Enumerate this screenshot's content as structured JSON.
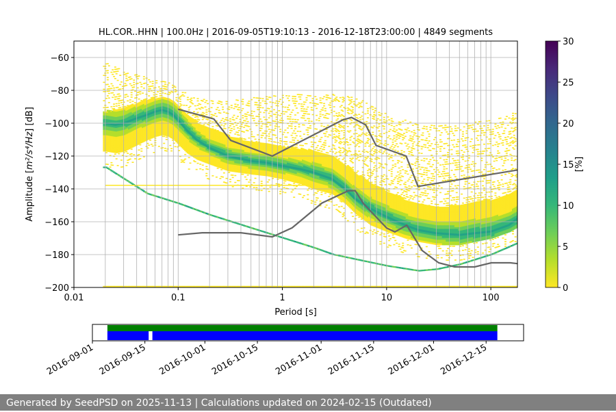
{
  "chart_data": {
    "type": "heatmap",
    "title": "HL.COR..HHN | 100.0Hz | 2016-09-05T19:10:13 - 2016-12-18T23:00:00 | 4849 segments",
    "xlabel": "Period [s]",
    "xscale": "log",
    "xlim": [
      0.01,
      180
    ],
    "xticks": [
      0.01,
      0.1,
      1,
      10,
      100
    ],
    "xtick_labels": [
      "0.01",
      "0.1",
      "1",
      "10",
      "100"
    ],
    "ylabel_prefix": "Amplitude [",
    "ylabel_math": "m²/s⁴/Hz",
    "ylabel_suffix": "] [dB]",
    "ylim": [
      -200,
      -50
    ],
    "yticks": [
      -200,
      -180,
      -160,
      -140,
      -120,
      -100,
      -80,
      -60
    ],
    "ytick_labels": [
      "−200",
      "−180",
      "−160",
      "−140",
      "−120",
      "−100",
      "−80",
      "−60"
    ],
    "grid": true,
    "colorbar": {
      "label": "[%]",
      "min": 0,
      "max": 30,
      "ticks": [
        0,
        5,
        10,
        15,
        20,
        25,
        30
      ],
      "tick_labels": [
        "0",
        "5",
        "10",
        "15",
        "20",
        "25",
        "30"
      ],
      "colors": [
        "#fde725",
        "#b5de2b",
        "#6ece58",
        "#35b779",
        "#1f9e89",
        "#26828e",
        "#31688e",
        "#3e4989",
        "#482878",
        "#440154"
      ]
    },
    "mode_curve": {
      "period": [
        0.02,
        0.025,
        0.03,
        0.04,
        0.05,
        0.06,
        0.07,
        0.08,
        0.09,
        0.1,
        0.12,
        0.15,
        0.2,
        0.3,
        0.5,
        0.7,
        1,
        1.5,
        2,
        3,
        4,
        5,
        7,
        10,
        15,
        20,
        30,
        50,
        70,
        100,
        150,
        180
      ],
      "db": [
        -100,
        -101,
        -100,
        -97,
        -95,
        -93,
        -92,
        -93,
        -95,
        -98,
        -104,
        -110,
        -115,
        -120,
        -123,
        -124,
        -126,
        -128,
        -130,
        -134,
        -140,
        -146,
        -152,
        -157,
        -162,
        -165,
        -167,
        -168,
        -167,
        -166,
        -162,
        -158
      ]
    },
    "mode_noise_band": {
      "period": [
        0.02,
        0.025,
        0.03,
        0.04,
        0.05,
        0.06,
        0.07,
        0.08,
        0.09,
        0.1,
        0.12,
        0.15,
        0.2,
        0.3,
        0.5,
        0.7,
        1,
        1.5,
        2,
        3,
        4,
        5,
        7,
        10,
        15,
        20,
        30,
        50,
        70,
        100,
        150,
        180
      ],
      "db_upper": [
        -93,
        -92,
        -91,
        -88,
        -86,
        -85,
        -84,
        -85,
        -87,
        -90,
        -95,
        -100,
        -104,
        -108,
        -112,
        -113,
        -115,
        -116,
        -117,
        -120,
        -126,
        -131,
        -137,
        -142,
        -147,
        -150,
        -152,
        -150,
        -148,
        -147,
        -144,
        -140
      ],
      "db_lower": [
        -117,
        -118,
        -117,
        -113,
        -110,
        -108,
        -107,
        -108,
        -110,
        -113,
        -118,
        -122,
        -125,
        -129,
        -131,
        -132,
        -134,
        -137,
        -140,
        -143,
        -149,
        -155,
        -162,
        -166,
        -170,
        -172,
        -174,
        -174,
        -172,
        -170,
        -166,
        -163
      ]
    },
    "scatter_band_upper": {
      "period": [
        0.02,
        0.03,
        0.05,
        0.08,
        0.1,
        0.15,
        0.2,
        0.3,
        0.5,
        1,
        2,
        3,
        5,
        7,
        10,
        15,
        20,
        30,
        50,
        100,
        180
      ],
      "db": [
        -63,
        -68,
        -72,
        -75,
        -79,
        -84,
        -86,
        -86,
        -84,
        -82,
        -82,
        -82,
        -84,
        -88,
        -94,
        -97,
        -100,
        -101,
        -100,
        -97,
        -92
      ]
    },
    "instrument_line": {
      "period": [
        0.02,
        0.05,
        0.1,
        0.2,
        0.5,
        1,
        2,
        3,
        5,
        10,
        20,
        30,
        50,
        100,
        180
      ],
      "db": [
        -127,
        -143,
        -149,
        -156,
        -164,
        -170,
        -176,
        -180,
        -183,
        -187,
        -190,
        -189,
        -186,
        -180,
        -173
      ]
    },
    "floor_line_db": -199.5,
    "nlnm": {
      "period": [
        0.1,
        0.17,
        0.4,
        0.8,
        1.24,
        2.4,
        4.3,
        5,
        6,
        10,
        12,
        15.6,
        21.9,
        31.6,
        45,
        70,
        101,
        154,
        180
      ],
      "db": [
        -168,
        -166.7,
        -166.7,
        -169.2,
        -163.7,
        -148.6,
        -141.1,
        -141.1,
        -149,
        -163.8,
        -166.2,
        -162.1,
        -177.5,
        -185,
        -187.5,
        -187.5,
        -185,
        -185,
        -185.5
      ]
    },
    "nhnm": {
      "period": [
        0.1,
        0.22,
        0.32,
        0.8,
        3.8,
        4.6,
        6.3,
        7.9,
        15.4,
        20,
        180
      ],
      "db": [
        -91.5,
        -97.4,
        -110.5,
        -120,
        -98,
        -96.5,
        -101,
        -113.5,
        -120,
        -138.5,
        -128.5
      ]
    },
    "grid_periods": [
      0.02,
      0.03,
      0.04,
      0.05,
      0.06,
      0.07,
      0.08,
      0.09,
      0.2,
      0.3,
      0.4,
      0.5,
      0.6,
      0.7,
      0.8,
      0.9,
      2,
      3,
      4,
      5,
      6,
      7,
      8,
      9,
      20,
      30,
      40,
      50,
      60,
      70,
      80,
      90
    ]
  },
  "timeline": {
    "start": "2016-09-01",
    "end": "2016-12-25",
    "tick_dates": [
      "2016-09-01",
      "2016-09-15",
      "2016-10-01",
      "2016-10-15",
      "2016-11-01",
      "2016-11-15",
      "2016-12-01",
      "2016-12-15"
    ],
    "tick_labels": [
      "2016-09-01",
      "2016-09-15",
      "2016-10-01",
      "2016-10-15",
      "2016-11-01",
      "2016-11-15",
      "2016-12-01",
      "2016-12-15"
    ],
    "available": [
      {
        "from": "2016-09-05",
        "to": "2016-12-18"
      }
    ],
    "used": [
      {
        "from": "2016-09-05",
        "to": "2016-09-16"
      },
      {
        "from": "2016-09-17",
        "to": "2016-12-18"
      }
    ],
    "available_color": "#008000",
    "used_color": "#0000ff"
  },
  "footer": {
    "text": "Generated by SeedPSD on 2025-11-13 | Calculations updated on 2024-02-15 (Outdated)"
  }
}
